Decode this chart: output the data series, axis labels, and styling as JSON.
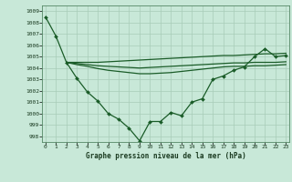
{
  "x": [
    0,
    1,
    2,
    3,
    4,
    5,
    6,
    7,
    8,
    9,
    10,
    11,
    12,
    13,
    14,
    15,
    16,
    17,
    18,
    19,
    20,
    21,
    22,
    23
  ],
  "line1": [
    1008.5,
    1006.8,
    1004.5,
    1003.1,
    1001.9,
    1001.1,
    1000.0,
    999.5,
    998.7,
    997.6,
    999.3,
    999.3,
    1000.1,
    999.8,
    1001.0,
    1001.3,
    1003.0,
    1003.3,
    1003.8,
    1004.1,
    1005.0,
    1005.7,
    1005.0,
    1005.1
  ],
  "line2_x": [
    2,
    3,
    4,
    5,
    6,
    7,
    8,
    9,
    10,
    11,
    12,
    13,
    14,
    15,
    16,
    17,
    18,
    19,
    20,
    21,
    22,
    23
  ],
  "line2": [
    1004.5,
    1004.5,
    1004.5,
    1004.5,
    1004.55,
    1004.6,
    1004.65,
    1004.7,
    1004.75,
    1004.8,
    1004.85,
    1004.9,
    1004.95,
    1005.0,
    1005.05,
    1005.1,
    1005.1,
    1005.15,
    1005.2,
    1005.25,
    1005.25,
    1005.3
  ],
  "line3_x": [
    2,
    3,
    4,
    5,
    6,
    7,
    8,
    9,
    10,
    11,
    12,
    13,
    14,
    15,
    16,
    17,
    18,
    19,
    20,
    21,
    22,
    23
  ],
  "line3": [
    1004.5,
    1004.3,
    1004.15,
    1003.95,
    1003.8,
    1003.7,
    1003.6,
    1003.5,
    1003.5,
    1003.55,
    1003.6,
    1003.7,
    1003.8,
    1003.9,
    1004.0,
    1004.1,
    1004.15,
    1004.15,
    1004.2,
    1004.2,
    1004.25,
    1004.3
  ],
  "line4_x": [
    2,
    3,
    4,
    5,
    6,
    7,
    8,
    9,
    10,
    11,
    12,
    13,
    14,
    15,
    16,
    17,
    18,
    19,
    20,
    21,
    22,
    23
  ],
  "line4": [
    1004.5,
    1004.4,
    1004.3,
    1004.2,
    1004.15,
    1004.1,
    1004.05,
    1004.0,
    1004.05,
    1004.1,
    1004.15,
    1004.2,
    1004.25,
    1004.3,
    1004.35,
    1004.4,
    1004.45,
    1004.45,
    1004.5,
    1004.5,
    1004.5,
    1004.55
  ],
  "ylim": [
    997.5,
    1009.5
  ],
  "yticks": [
    998,
    999,
    1000,
    1001,
    1002,
    1003,
    1004,
    1005,
    1006,
    1007,
    1008,
    1009
  ],
  "xlim": [
    -0.3,
    23.3
  ],
  "bg_color": "#c8e8d8",
  "grid_color": "#a8ccb8",
  "line_color": "#1a5c28",
  "xlabel": "Graphe pression niveau de la mer (hPa)"
}
